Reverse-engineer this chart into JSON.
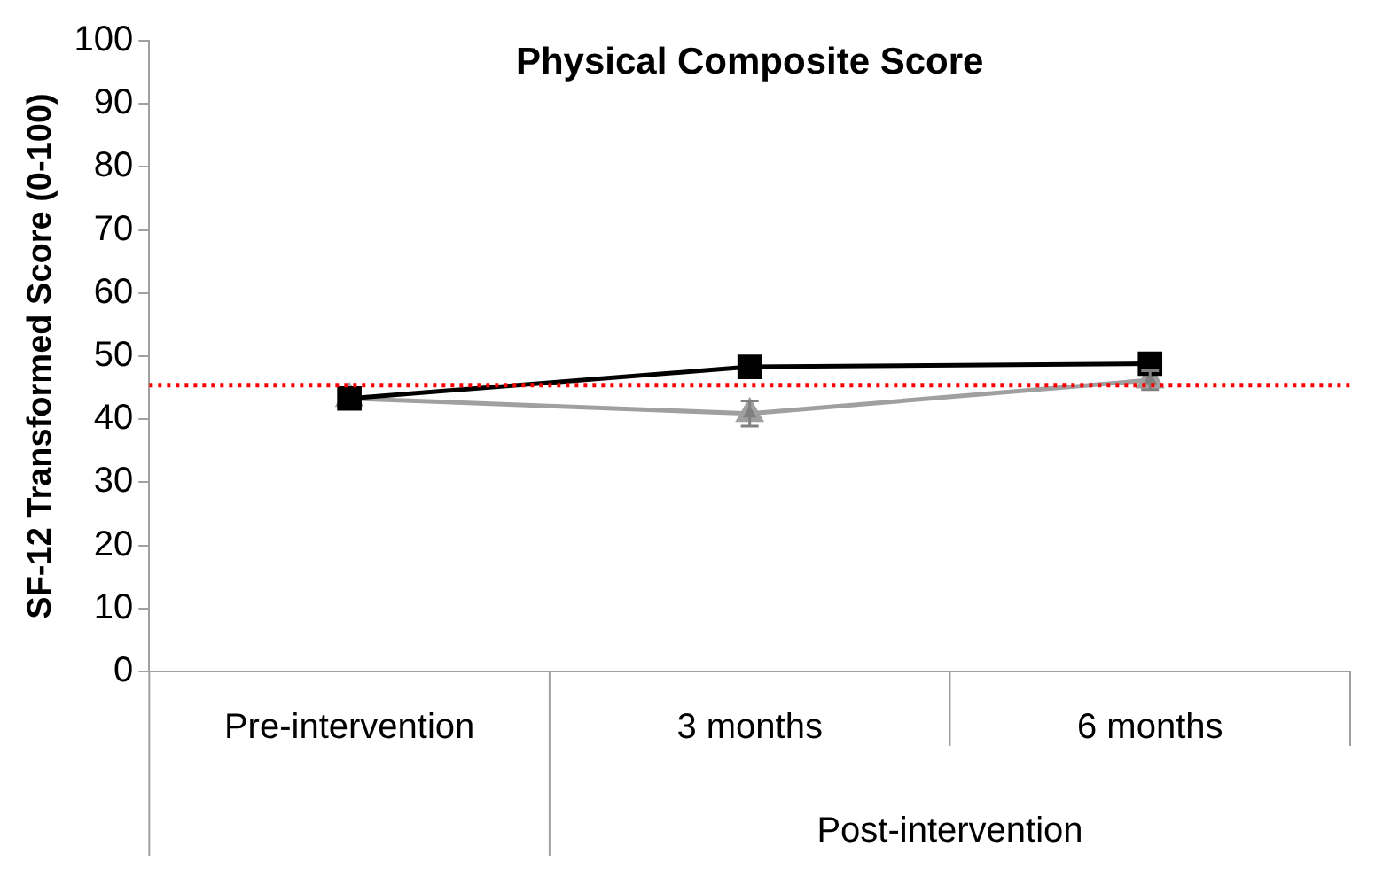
{
  "chart_data": {
    "type": "line",
    "title": "Physical Composite Score",
    "ylabel": "SF-12 Transformed Score (0-100)",
    "categories": [
      "Pre-intervention",
      "3 months",
      "6 months"
    ],
    "series": [
      {
        "color": "#000000",
        "values": [
          43.3,
          48.3,
          48.8
        ],
        "marker": "square"
      },
      {
        "color": "#a0a0a0",
        "values": [
          43.3,
          40.9,
          46.2
        ],
        "marker": "triangle",
        "errors": [
          null,
          2,
          1.5
        ]
      }
    ],
    "ylim": [
      0,
      100
    ],
    "yticks": [
      0,
      10,
      20,
      30,
      40,
      50,
      60,
      70,
      80,
      90,
      100
    ],
    "ref_lines": [
      {
        "axis": "y",
        "value": 45.4,
        "color": "#ff0000",
        "line_style": "dotted"
      }
    ],
    "annotations": [
      "Post-intervention"
    ],
    "grid": false,
    "legend": false
  }
}
